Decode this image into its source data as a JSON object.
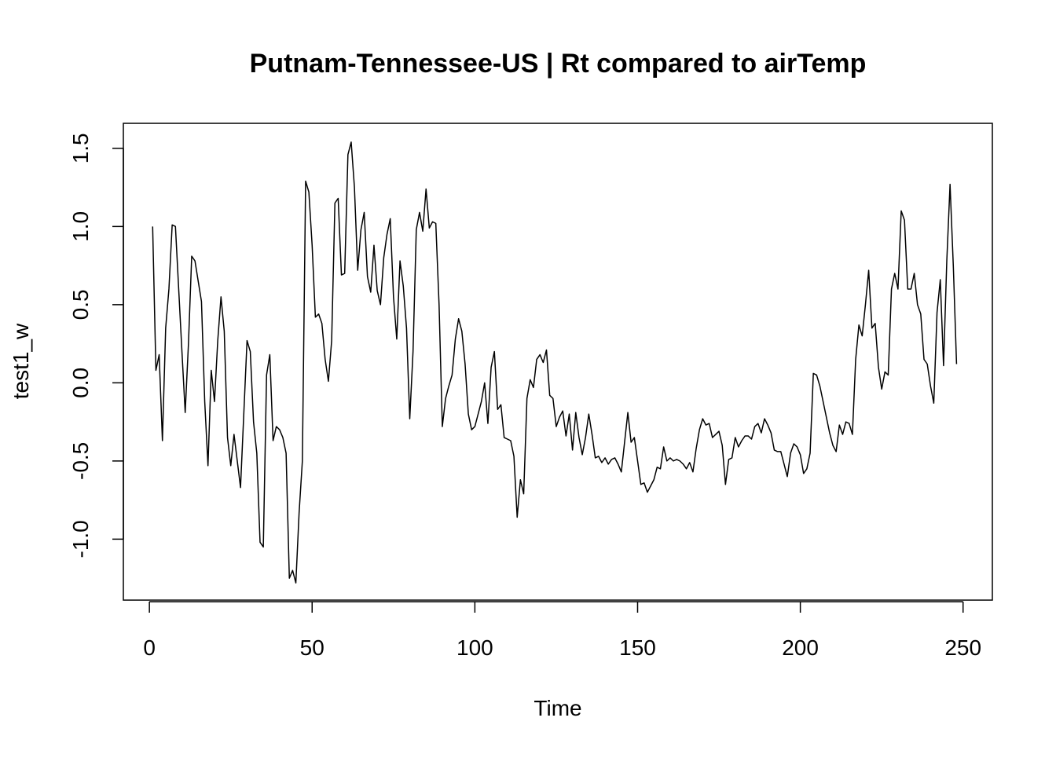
{
  "chart_data": {
    "type": "line",
    "title": "Putnam-Tennessee-US | Rt compared to airTemp",
    "xlabel": "Time",
    "ylabel": "test1_w",
    "xlim": [
      -8,
      259
    ],
    "ylim": [
      -1.39,
      1.66
    ],
    "xticks": [
      0,
      50,
      100,
      150,
      200,
      250
    ],
    "xtick_labels": [
      "0",
      "50",
      "100",
      "150",
      "200",
      "250"
    ],
    "yticks": [
      -1.0,
      -0.5,
      0.0,
      0.5,
      1.0,
      1.5
    ],
    "ytick_labels": [
      "-1.0",
      "-0.5",
      "0.0",
      "0.5",
      "1.0",
      "1.5"
    ],
    "grid": false,
    "line_color": "#000000",
    "series": [
      {
        "x": [
          1,
          2,
          3,
          4,
          5,
          6,
          7,
          8,
          9,
          10,
          11,
          12,
          13,
          14,
          15,
          16,
          17,
          18,
          19,
          20,
          21,
          22,
          23,
          24,
          25,
          26,
          27,
          28,
          29,
          30,
          31,
          32,
          33,
          34,
          35,
          36,
          37,
          38,
          39,
          40,
          41,
          42,
          43,
          44,
          45,
          46,
          47,
          48,
          49,
          50,
          51,
          52,
          53,
          54,
          55,
          56,
          57,
          58,
          59,
          60,
          61,
          62,
          63,
          64,
          65,
          66,
          67,
          68,
          69,
          70,
          71,
          72,
          73,
          74,
          75,
          76,
          77,
          78,
          79,
          80,
          81,
          82,
          83,
          84,
          85,
          86,
          87,
          88,
          89,
          90,
          91,
          92,
          93,
          94,
          95,
          96,
          97,
          98,
          99,
          100,
          101,
          102,
          103,
          104,
          105,
          106,
          107,
          108,
          109,
          110,
          111,
          112,
          113,
          114,
          115,
          116,
          117,
          118,
          119,
          120,
          121,
          122,
          123,
          124,
          125,
          126,
          127,
          128,
          129,
          130,
          131,
          132,
          133,
          134,
          135,
          136,
          137,
          138,
          139,
          140,
          141,
          142,
          143,
          144,
          145,
          146,
          147,
          148,
          149,
          150,
          151,
          152,
          153,
          154,
          155,
          156,
          157,
          158,
          159,
          160,
          161,
          162,
          163,
          164,
          165,
          166,
          167,
          168,
          169,
          170,
          171,
          172,
          173,
          174,
          175,
          176,
          177,
          178,
          179,
          180,
          181,
          182,
          183,
          184,
          185,
          186,
          187,
          188,
          189,
          190,
          191,
          192,
          193,
          194,
          195,
          196,
          197,
          198,
          199,
          200,
          201,
          202,
          203,
          204,
          205,
          206,
          207,
          208,
          209,
          210,
          211,
          212,
          213,
          214,
          215,
          216,
          217,
          218,
          219,
          220,
          221,
          222,
          223,
          224,
          225,
          226,
          227,
          228,
          229,
          230,
          231,
          232,
          233,
          234,
          235,
          236,
          237,
          238,
          239,
          240,
          241,
          242,
          243,
          244,
          245,
          246,
          247,
          248
        ],
        "values": [
          1.0,
          0.08,
          0.18,
          -0.37,
          0.35,
          0.6,
          1.01,
          1.0,
          0.6,
          0.2,
          -0.19,
          0.25,
          0.81,
          0.78,
          0.65,
          0.52,
          -0.12,
          -0.53,
          0.08,
          -0.12,
          0.27,
          0.55,
          0.33,
          -0.35,
          -0.53,
          -0.33,
          -0.5,
          -0.67,
          -0.2,
          0.27,
          0.2,
          -0.25,
          -0.45,
          -1.02,
          -1.05,
          0.05,
          0.18,
          -0.37,
          -0.28,
          -0.3,
          -0.35,
          -0.45,
          -1.25,
          -1.2,
          -1.28,
          -0.83,
          -0.5,
          1.29,
          1.22,
          0.88,
          0.42,
          0.44,
          0.38,
          0.15,
          0.01,
          0.27,
          1.15,
          1.18,
          0.69,
          0.7,
          1.46,
          1.54,
          1.25,
          0.72,
          0.98,
          1.09,
          0.68,
          0.58,
          0.88,
          0.59,
          0.5,
          0.8,
          0.95,
          1.05,
          0.55,
          0.28,
          0.78,
          0.62,
          0.35,
          -0.23,
          0.2,
          0.98,
          1.09,
          0.97,
          1.24,
          0.99,
          1.03,
          1.02,
          0.5,
          -0.28,
          -0.1,
          -0.02,
          0.05,
          0.28,
          0.41,
          0.33,
          0.12,
          -0.2,
          -0.3,
          -0.28,
          -0.2,
          -0.12,
          0.0,
          -0.26,
          0.1,
          0.2,
          -0.17,
          -0.14,
          -0.35,
          -0.36,
          -0.37,
          -0.47,
          -0.86,
          -0.62,
          -0.71,
          -0.1,
          0.02,
          -0.03,
          0.15,
          0.18,
          0.13,
          0.21,
          -0.08,
          -0.1,
          -0.28,
          -0.22,
          -0.18,
          -0.34,
          -0.2,
          -0.43,
          -0.19,
          -0.35,
          -0.46,
          -0.35,
          -0.2,
          -0.33,
          -0.48,
          -0.47,
          -0.51,
          -0.48,
          -0.52,
          -0.49,
          -0.48,
          -0.52,
          -0.57,
          -0.38,
          -0.19,
          -0.38,
          -0.35,
          -0.5,
          -0.65,
          -0.64,
          -0.7,
          -0.66,
          -0.62,
          -0.54,
          -0.55,
          -0.41,
          -0.5,
          -0.48,
          -0.5,
          -0.49,
          -0.5,
          -0.52,
          -0.55,
          -0.51,
          -0.57,
          -0.42,
          -0.3,
          -0.23,
          -0.27,
          -0.26,
          -0.35,
          -0.33,
          -0.31,
          -0.4,
          -0.65,
          -0.49,
          -0.48,
          -0.35,
          -0.41,
          -0.37,
          -0.34,
          -0.34,
          -0.36,
          -0.28,
          -0.26,
          -0.32,
          -0.23,
          -0.27,
          -0.32,
          -0.43,
          -0.44,
          -0.44,
          -0.52,
          -0.6,
          -0.45,
          -0.39,
          -0.41,
          -0.46,
          -0.58,
          -0.55,
          -0.45,
          0.06,
          0.05,
          -0.02,
          -0.12,
          -0.22,
          -0.32,
          -0.4,
          -0.44,
          -0.27,
          -0.33,
          -0.25,
          -0.26,
          -0.33,
          0.15,
          0.37,
          0.3,
          0.5,
          0.72,
          0.35,
          0.38,
          0.1,
          -0.04,
          0.07,
          0.05,
          0.6,
          0.7,
          0.6,
          1.1,
          1.04,
          0.6,
          0.6,
          0.7,
          0.5,
          0.44,
          0.15,
          0.12,
          -0.02,
          -0.13,
          0.45,
          0.66,
          0.11,
          0.78,
          1.27,
          0.75,
          0.12
        ]
      }
    ]
  }
}
